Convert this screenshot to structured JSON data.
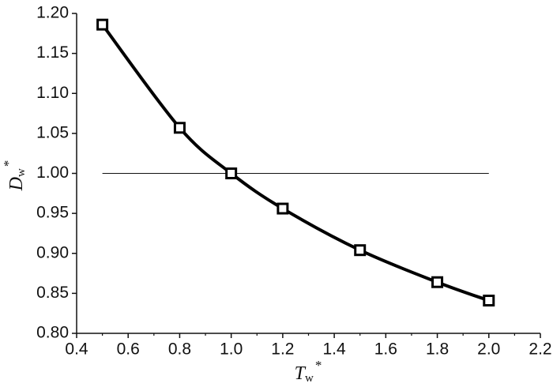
{
  "chart_data": {
    "type": "line",
    "xlabel": {
      "main": "T",
      "sub": "w",
      "sup": "*"
    },
    "ylabel": {
      "main": "D",
      "sub": "w",
      "sup": "*"
    },
    "x": [
      0.5,
      0.8,
      1.0,
      1.2,
      1.5,
      1.8,
      2.0
    ],
    "series": [
      {
        "values": [
          1.186,
          1.057,
          1.0,
          0.956,
          0.904,
          0.864,
          0.841
        ],
        "color": "#000000"
      }
    ],
    "reference_line": {
      "y": 1.0,
      "x": [
        0.5,
        2.0
      ]
    },
    "xlim": [
      0.4,
      2.2
    ],
    "xticks": [
      0.4,
      0.6,
      0.8,
      {
        "value": 1.0,
        "label": "1.0"
      },
      1.2,
      1.4,
      1.6,
      1.8,
      {
        "value": 2.0,
        "label": "2.0"
      },
      2.2
    ],
    "ylim": [
      0.8,
      1.2
    ],
    "yticks": [
      {
        "value": 0.8,
        "label": "0.80"
      },
      0.85,
      {
        "value": 0.9,
        "label": "0.90"
      },
      0.95,
      {
        "value": 1.0,
        "label": "1.00"
      },
      1.05,
      {
        "value": 1.1,
        "label": "1.10"
      },
      1.15,
      {
        "value": 1.2,
        "label": "1.20"
      }
    ],
    "grid": false
  }
}
